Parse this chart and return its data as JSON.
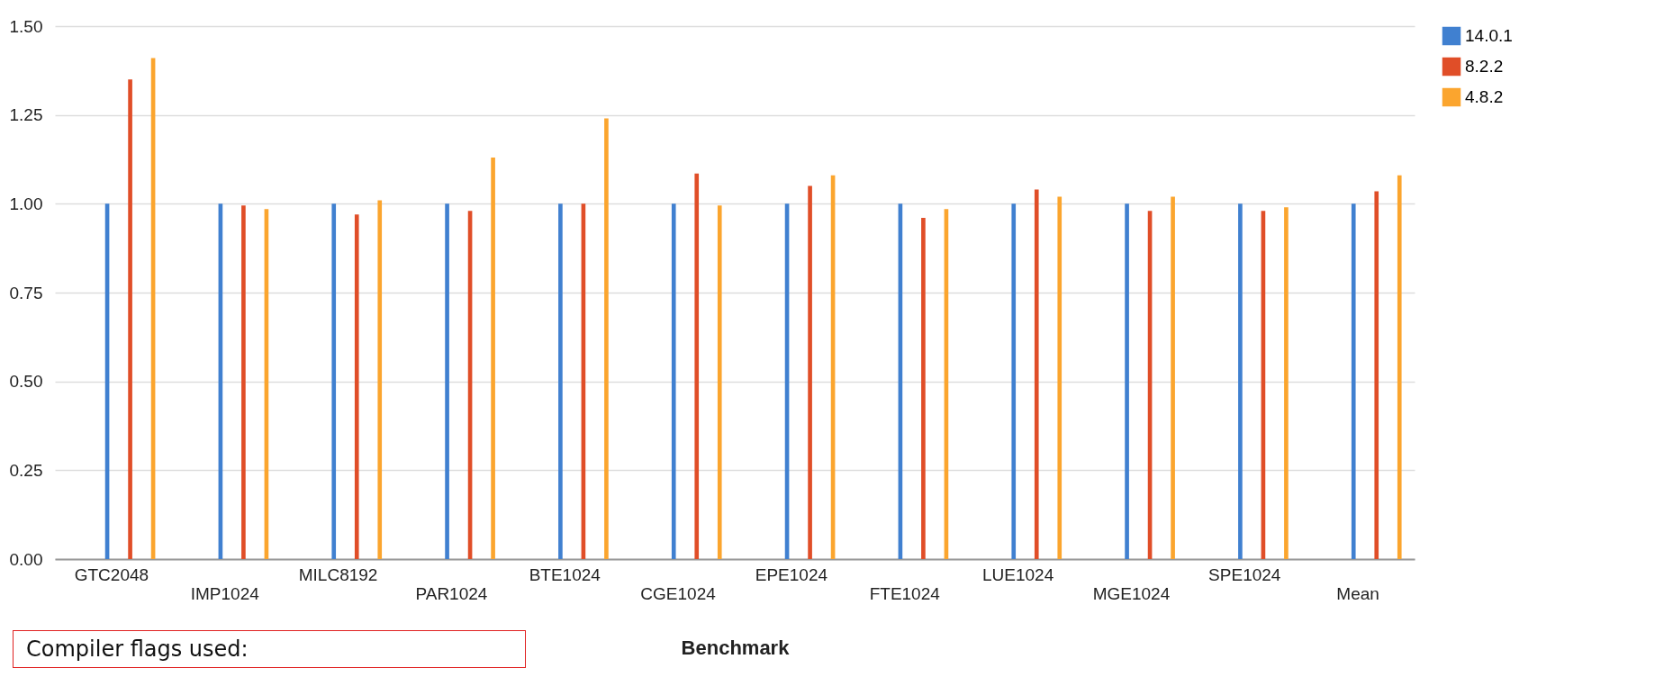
{
  "chart_data": {
    "type": "bar",
    "xlabel": "Benchmark",
    "categories": [
      "GTC2048",
      "IMP1024",
      "MILC8192",
      "PAR1024",
      "BTE1024",
      "CGE1024",
      "EPE1024",
      "FTE1024",
      "LUE1024",
      "MGE1024",
      "SPE1024",
      "Mean"
    ],
    "series": [
      {
        "name": "14.0.1",
        "color": "#4080d0",
        "values": [
          1.0,
          1.0,
          1.0,
          1.0,
          1.0,
          1.0,
          1.0,
          1.0,
          1.0,
          1.0,
          1.0,
          1.0
        ]
      },
      {
        "name": "8.2.2",
        "color": "#e04e28",
        "values": [
          1.35,
          0.995,
          0.97,
          0.98,
          1.0,
          1.085,
          1.05,
          0.96,
          1.04,
          0.98,
          0.98,
          1.035
        ]
      },
      {
        "name": "4.8.2",
        "color": "#fba52e",
        "values": [
          1.41,
          0.985,
          1.01,
          1.13,
          1.24,
          0.995,
          1.08,
          0.985,
          1.02,
          1.02,
          0.99,
          1.08
        ]
      }
    ],
    "ylim": [
      0,
      1.5
    ],
    "yticks": [
      {
        "value": 0,
        "label": "0.00"
      },
      {
        "value": 0.25,
        "label": "0.25"
      },
      {
        "value": 0.5,
        "label": "0.50"
      },
      {
        "value": 0.75,
        "label": "0.75"
      },
      {
        "value": 1,
        "label": "1.00"
      },
      {
        "value": 1.25,
        "label": "1.25"
      },
      {
        "value": 1.5,
        "label": "1.50"
      }
    ],
    "grid": "y",
    "legend": "top right",
    "annotations": [
      "Compiler flags used:"
    ]
  }
}
